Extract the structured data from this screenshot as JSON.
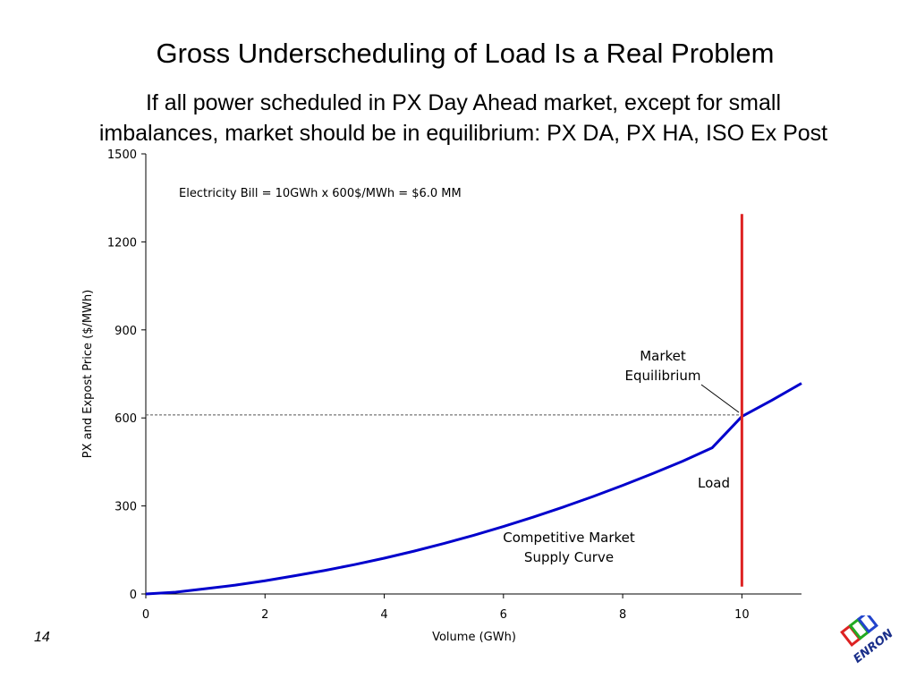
{
  "slide": {
    "title": "Gross Underscheduling of Load Is a Real Problem",
    "subtitle_line1": "If all power scheduled in PX Day Ahead market, except for small",
    "subtitle_line2": "imbalances, market should be in equilibrium:  PX DA, PX HA, ISO Ex Post",
    "page_number": "14",
    "logo_text": "ENRON"
  },
  "chart_data": {
    "type": "line",
    "xlabel": "Volume (GWh)",
    "ylabel": "PX and Expost Price ($/MWh)",
    "xlim": [
      0,
      11
    ],
    "ylim": [
      0,
      1500
    ],
    "xticks": [
      0,
      2,
      4,
      6,
      8,
      10
    ],
    "yticks": [
      0,
      300,
      600,
      900,
      1200,
      1500
    ],
    "grid": false,
    "series": [
      {
        "color": "#0000cc",
        "x": [
          0,
          0.5,
          1,
          1.5,
          2,
          2.5,
          3,
          3.5,
          4,
          4.5,
          5,
          5.5,
          6,
          6.5,
          7,
          7.5,
          8,
          8.5,
          9,
          9.5,
          10,
          10.5,
          11
        ],
        "y": [
          0,
          6,
          18,
          30,
          45,
          62,
          80,
          100,
          122,
          146,
          172,
          200,
          230,
          262,
          296,
          332,
          370,
          410,
          452,
          498,
          605,
          660,
          718
        ]
      }
    ],
    "load_line": {
      "x": 10,
      "y_from": 25,
      "y_to": 1295,
      "color": "#dd2222"
    },
    "equilibrium_guide": {
      "x_from": 0,
      "x_to": 10,
      "y": 610,
      "color": "#555555"
    },
    "annotations": {
      "bill": "Electricity Bill = 10GWh x 600$/MWh = $6.0 MM",
      "equilibrium_line1": "Market",
      "equilibrium_line2": "Equilibrium",
      "load": "Load",
      "supply_line1": "Competitive Market",
      "supply_line2": "Supply Curve"
    }
  }
}
